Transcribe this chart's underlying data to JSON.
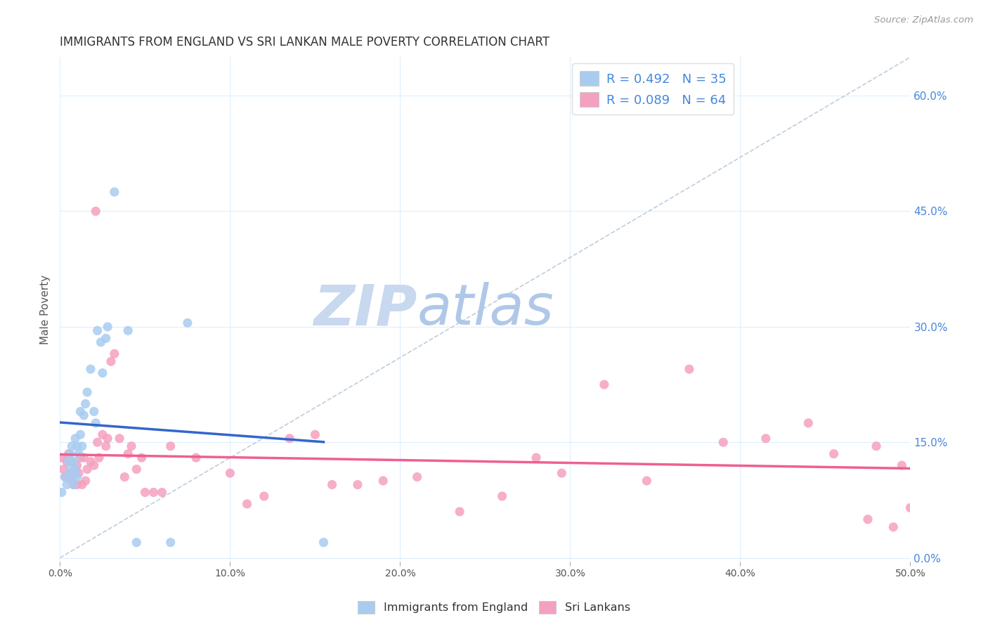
{
  "title": "IMMIGRANTS FROM ENGLAND VS SRI LANKAN MALE POVERTY CORRELATION CHART",
  "source": "Source: ZipAtlas.com",
  "ylabel": "Male Poverty",
  "x_tick_labels": [
    "0.0%",
    "10.0%",
    "20.0%",
    "30.0%",
    "40.0%",
    "50.0%"
  ],
  "y_tick_labels_right": [
    "0.0%",
    "15.0%",
    "30.0%",
    "45.0%",
    "60.0%"
  ],
  "xlim": [
    0.0,
    0.5
  ],
  "ylim": [
    -0.005,
    0.65
  ],
  "background_color": "#ffffff",
  "grid_color": "#ddeeff",
  "watermark_zip": "ZIP",
  "watermark_atlas": "atlas",
  "watermark_color_zip": "#c8d8ee",
  "watermark_color_atlas": "#b0c8e8",
  "legend_R1": "0.492",
  "legend_N1": "35",
  "legend_R2": "0.089",
  "legend_N2": "64",
  "color_england": "#a8ccf0",
  "color_srilanka": "#f5a0c0",
  "trend_england_color": "#3366cc",
  "trend_srilanka_color": "#ee6090",
  "diag_line_color": "#b8c8d8",
  "england_x": [
    0.001,
    0.003,
    0.004,
    0.005,
    0.006,
    0.006,
    0.007,
    0.007,
    0.008,
    0.008,
    0.009,
    0.009,
    0.01,
    0.01,
    0.011,
    0.012,
    0.012,
    0.013,
    0.014,
    0.015,
    0.016,
    0.018,
    0.02,
    0.021,
    0.022,
    0.024,
    0.025,
    0.027,
    0.028,
    0.032,
    0.04,
    0.045,
    0.065,
    0.075,
    0.155
  ],
  "england_y": [
    0.085,
    0.105,
    0.095,
    0.125,
    0.135,
    0.115,
    0.105,
    0.145,
    0.095,
    0.125,
    0.115,
    0.155,
    0.105,
    0.145,
    0.135,
    0.16,
    0.19,
    0.145,
    0.185,
    0.2,
    0.215,
    0.245,
    0.19,
    0.175,
    0.295,
    0.28,
    0.24,
    0.285,
    0.3,
    0.475,
    0.295,
    0.02,
    0.02,
    0.305,
    0.02
  ],
  "srilanka_x": [
    0.001,
    0.002,
    0.003,
    0.004,
    0.005,
    0.006,
    0.007,
    0.007,
    0.008,
    0.009,
    0.01,
    0.01,
    0.011,
    0.012,
    0.013,
    0.014,
    0.015,
    0.016,
    0.018,
    0.02,
    0.021,
    0.022,
    0.023,
    0.025,
    0.027,
    0.028,
    0.03,
    0.032,
    0.035,
    0.038,
    0.04,
    0.042,
    0.045,
    0.048,
    0.05,
    0.055,
    0.06,
    0.065,
    0.08,
    0.1,
    0.11,
    0.12,
    0.135,
    0.15,
    0.16,
    0.175,
    0.19,
    0.21,
    0.235,
    0.26,
    0.28,
    0.295,
    0.32,
    0.345,
    0.37,
    0.39,
    0.415,
    0.44,
    0.455,
    0.475,
    0.48,
    0.49,
    0.495,
    0.5
  ],
  "srilanka_y": [
    0.13,
    0.115,
    0.105,
    0.125,
    0.135,
    0.11,
    0.1,
    0.125,
    0.095,
    0.115,
    0.095,
    0.12,
    0.11,
    0.13,
    0.095,
    0.13,
    0.1,
    0.115,
    0.125,
    0.12,
    0.45,
    0.15,
    0.13,
    0.16,
    0.145,
    0.155,
    0.255,
    0.265,
    0.155,
    0.105,
    0.135,
    0.145,
    0.115,
    0.13,
    0.085,
    0.085,
    0.085,
    0.145,
    0.13,
    0.11,
    0.07,
    0.08,
    0.155,
    0.16,
    0.095,
    0.095,
    0.1,
    0.105,
    0.06,
    0.08,
    0.13,
    0.11,
    0.225,
    0.1,
    0.245,
    0.15,
    0.155,
    0.175,
    0.135,
    0.05,
    0.145,
    0.04,
    0.12,
    0.065
  ]
}
